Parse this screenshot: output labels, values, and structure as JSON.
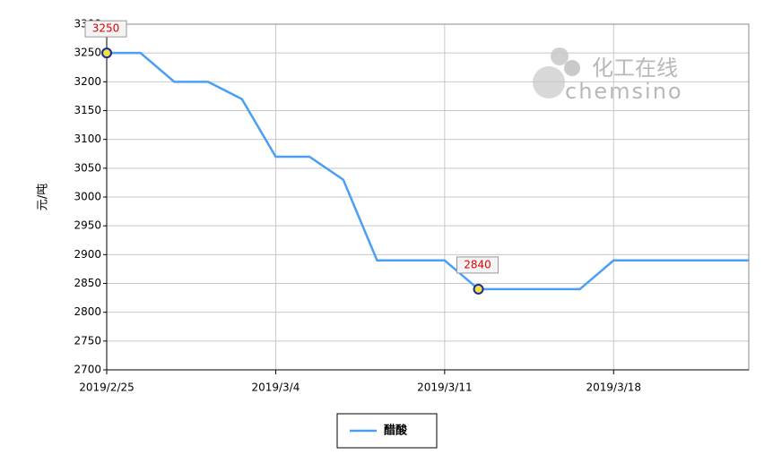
{
  "chart_data": {
    "type": "line",
    "y_label": "元/吨",
    "categories": [
      "2019/2/25",
      null,
      null,
      null,
      null,
      "2019/3/4",
      null,
      null,
      null,
      null,
      "2019/3/11",
      null,
      null,
      null,
      null,
      "2019/3/18",
      null,
      null,
      null,
      null
    ],
    "series": [
      {
        "name": "醋酸",
        "color": "#4a9ff5",
        "values": [
          3250,
          3250,
          3200,
          3200,
          3170,
          3070,
          3070,
          3030,
          2890,
          2890,
          2890,
          2840,
          2840,
          2840,
          2840,
          2890,
          2890,
          2890,
          2890,
          2890
        ]
      }
    ],
    "highlight_points": [
      0,
      11
    ],
    "ylim": [
      2700,
      3300
    ],
    "yticks": [
      2700,
      2750,
      2800,
      2850,
      2900,
      2950,
      3000,
      3050,
      3100,
      3150,
      3200,
      3250,
      3300
    ],
    "grid": true,
    "legend": "bottom",
    "watermark": {
      "cn": "化工在线",
      "en": "chemsino"
    }
  }
}
